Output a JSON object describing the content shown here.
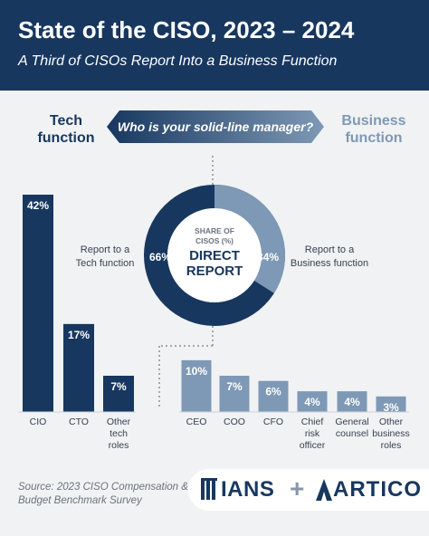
{
  "header": {
    "title": "State of the CISO, 2023 – 2024",
    "subtitle": "A Third of CISOs Report Into a Business Function"
  },
  "labels": {
    "tech": "Tech function",
    "business": "Business function",
    "question": "Who is your solid-line manager?",
    "report_tech": "Report to a Tech function",
    "report_business": "Report to a Business function"
  },
  "donut": {
    "center_top": "SHARE OF CISOS (%)",
    "center_main": "DIRECT REPORT",
    "tech_pct_label": "66%",
    "business_pct_label": "34%"
  },
  "footer": {
    "source": "Source: 2023 CISO Compensation & Budget Benchmark Survey",
    "logo_left": "IANS",
    "logo_plus": "+",
    "logo_right": "ARTICO"
  },
  "colors": {
    "tech": "#17375f",
    "business": "#7e99b5",
    "header_bg": "#17375f"
  },
  "chart_data": [
    {
      "type": "pie",
      "title": "SHARE OF CISOS (%) DIRECT REPORT",
      "categories": [
        "Tech function",
        "Business function"
      ],
      "values": [
        66,
        34
      ]
    },
    {
      "type": "bar",
      "series": [
        {
          "name": "Tech function",
          "categories": [
            "CIO",
            "CTO",
            "Other tech roles"
          ],
          "values": [
            42,
            17,
            7
          ],
          "labels": [
            "42%",
            "17%",
            "7%"
          ]
        },
        {
          "name": "Business function",
          "categories": [
            "CEO",
            "COO",
            "CFO",
            "Chief risk officer",
            "General counsel",
            "Other business roles"
          ],
          "values": [
            10,
            7,
            6,
            4,
            4,
            3
          ],
          "labels": [
            "10%",
            "7%",
            "6%",
            "4%",
            "4%",
            "3%"
          ]
        }
      ],
      "ylim": [
        0,
        42
      ]
    }
  ]
}
